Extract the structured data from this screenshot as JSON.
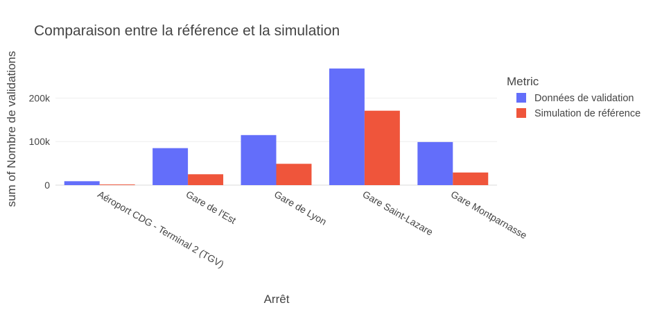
{
  "chart_data": {
    "type": "bar",
    "title": "Comparaison entre la référence et la simulation",
    "xlabel": "Arrêt",
    "ylabel": "sum of Nombre de validations",
    "categories": [
      "Aéroport CDG - Terminal 2 (TGV)",
      "Gare de l'Est",
      "Gare de Lyon",
      "Gare Saint-Lazare",
      "Gare Montparnasse"
    ],
    "series": [
      {
        "name": "Données de validation",
        "color": "#636efa",
        "values": [
          9000,
          85000,
          115000,
          268000,
          99000
        ]
      },
      {
        "name": "Simulation de référence",
        "color": "#ef553b",
        "values": [
          1500,
          25000,
          49000,
          171000,
          29000
        ]
      }
    ],
    "ylim": [
      0,
      282000
    ],
    "yticks": [
      {
        "value": 0,
        "label": "0"
      },
      {
        "value": 100000,
        "label": "100k"
      },
      {
        "value": 200000,
        "label": "200k"
      }
    ],
    "grid": true,
    "legend": {
      "title": "Metric",
      "placement": "right"
    }
  }
}
